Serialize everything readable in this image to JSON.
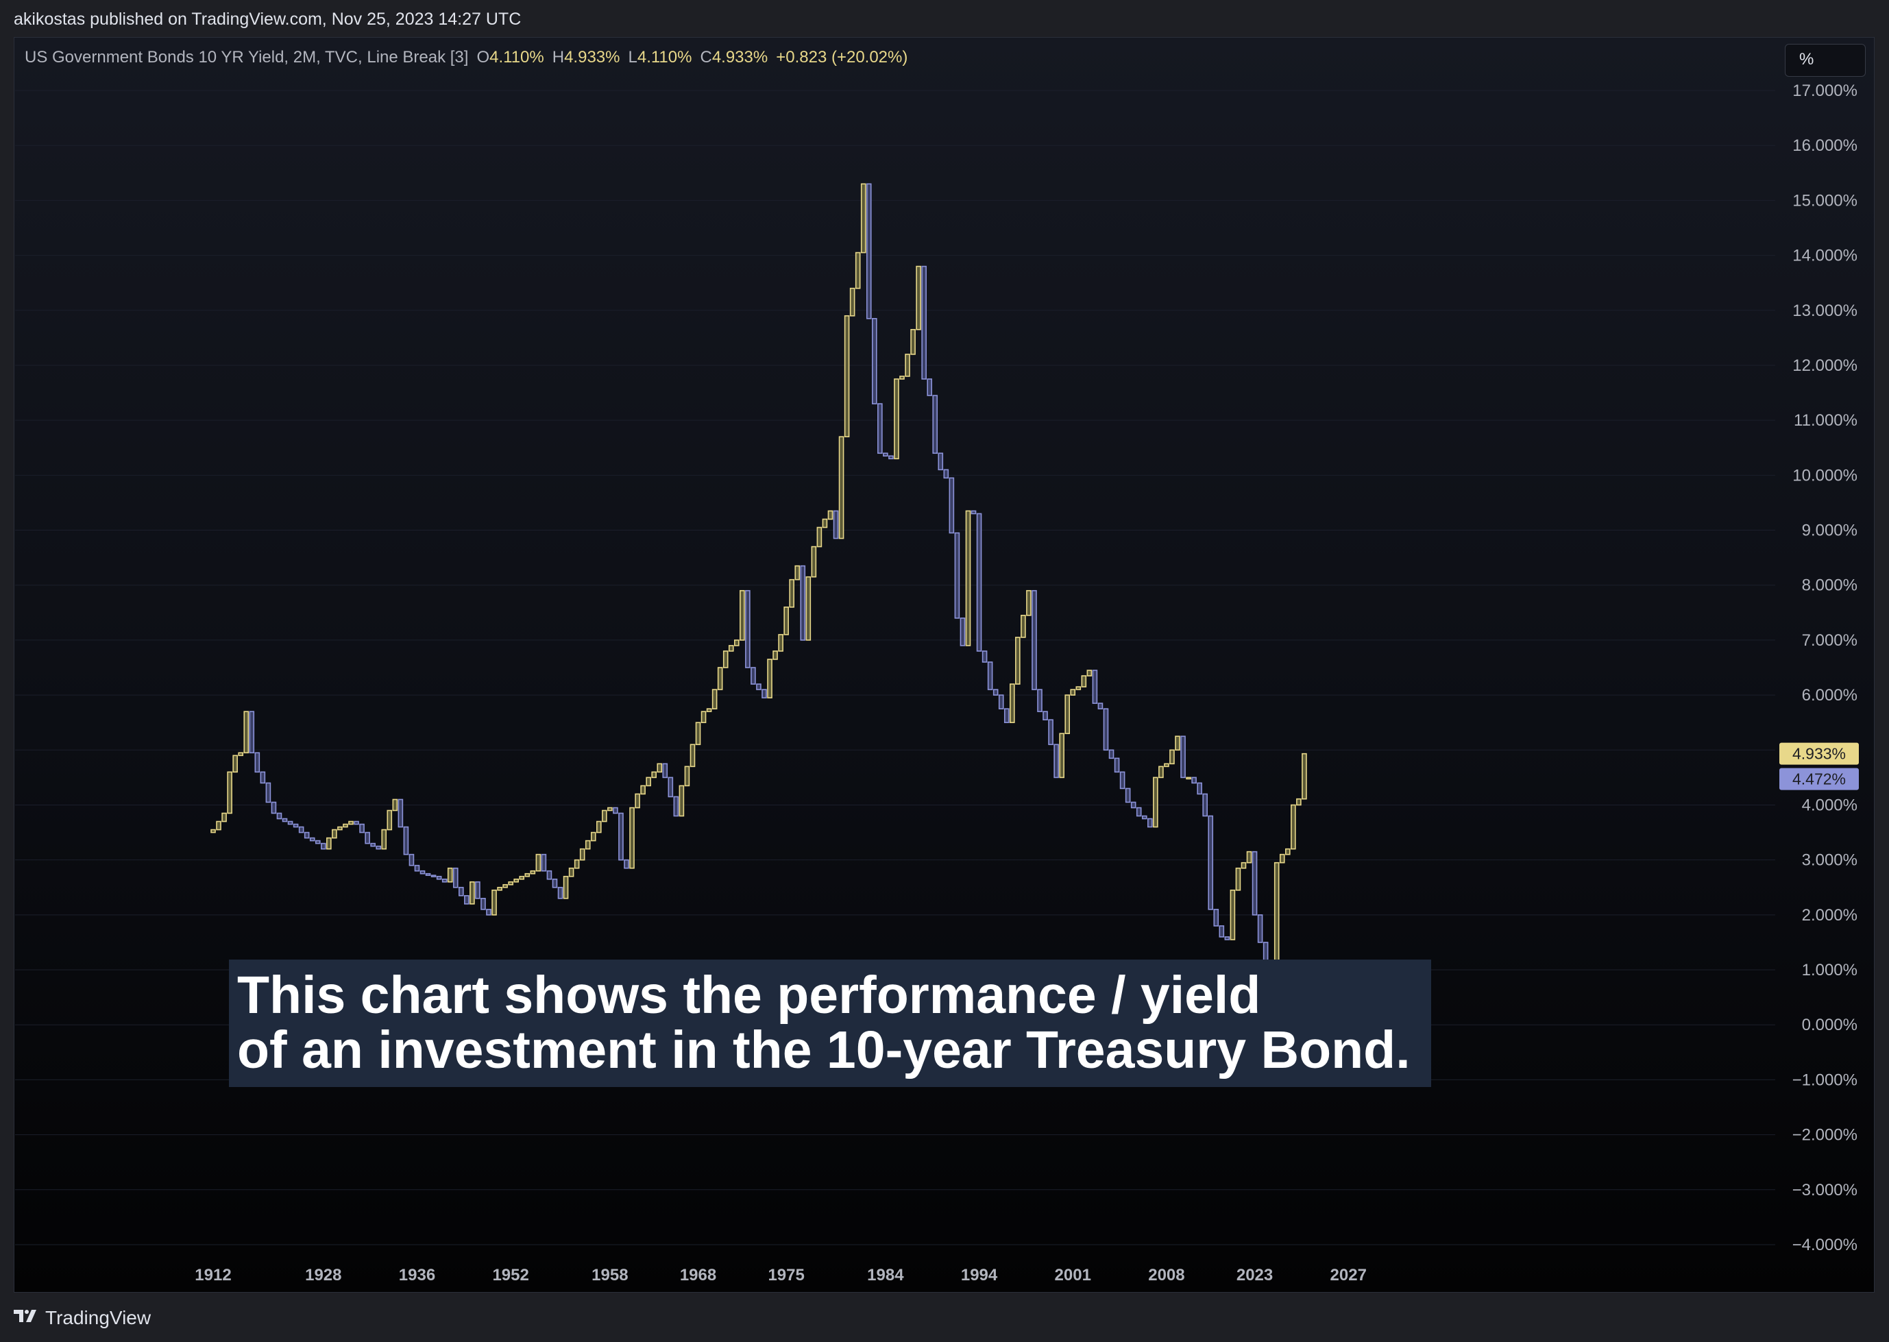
{
  "header": {
    "published_text": "akikostas published on TradingView.com, Nov 25, 2023 14:27 UTC"
  },
  "legend": {
    "title": "US Government Bonds 10 YR Yield, 2M, TVC, Line Break [3]",
    "open_label": "O",
    "open_value": "4.110%",
    "high_label": "H",
    "high_value": "4.933%",
    "low_label": "L",
    "low_value": "4.110%",
    "close_label": "C",
    "close_value": "4.933%",
    "change": "+0.823 (+20.02%)"
  },
  "axis_unit": "%",
  "caption": {
    "line1": "This chart shows the performance /  yield",
    "line2": "of an investment in the 10-year Treasury Bond."
  },
  "footer": {
    "brand": "TradingView"
  },
  "badges": [
    {
      "text": "4.933%",
      "value": 4.933,
      "bg": "#e8d88a",
      "fg": "#1e1f24"
    },
    {
      "text": "4.472%",
      "value": 4.472,
      "bg": "#8c93d9",
      "fg": "#1e1f24"
    }
  ],
  "colors": {
    "up": "#e8d88a",
    "down": "#8c93d9",
    "grid": "#1b1f2b"
  },
  "chart_data": {
    "type": "line_break",
    "title": "US Government Bonds 10 YR Yield, 2M, TVC, Line Break [3]",
    "ylabel": "%",
    "ylim": [
      -4,
      17
    ],
    "y_ticks": [
      17,
      16,
      15,
      14,
      13,
      12,
      11,
      10,
      9,
      8,
      7,
      6,
      5,
      4,
      3,
      2,
      1,
      0,
      -1,
      -2,
      -3,
      -4
    ],
    "y_tick_labels": [
      "17.000%",
      "16.000%",
      "15.000%",
      "14.000%",
      "13.000%",
      "12.000%",
      "11.000%",
      "10.000%",
      "9.000%",
      "8.000%",
      "7.000%",
      "6.000%",
      "",
      "4.000%",
      "3.000%",
      "2.000%",
      "1.000%",
      "0.000%",
      "−1.000%",
      "−2.000%",
      "−3.000%",
      "−4.000%"
    ],
    "x_tick_labels": [
      "1912",
      "1928",
      "1936",
      "1952",
      "1958",
      "1968",
      "1975",
      "1984",
      "1994",
      "2001",
      "2008",
      "2023",
      "2027"
    ],
    "x_tick_bricks": [
      0,
      20,
      37,
      54,
      72,
      88,
      104,
      122,
      139,
      156,
      173,
      189,
      206
    ],
    "start_value": 3.5,
    "bricks_close": [
      3.55,
      3.7,
      3.85,
      4.6,
      4.9,
      4.95,
      5.7,
      4.95,
      4.6,
      4.4,
      4.05,
      3.85,
      3.75,
      3.7,
      3.65,
      3.6,
      3.5,
      3.4,
      3.35,
      3.3,
      3.2,
      3.4,
      3.55,
      3.6,
      3.65,
      3.7,
      3.65,
      3.5,
      3.3,
      3.25,
      3.2,
      3.55,
      3.9,
      4.1,
      3.6,
      3.1,
      2.9,
      2.8,
      2.75,
      2.72,
      2.7,
      2.65,
      2.6,
      2.85,
      2.5,
      2.35,
      2.2,
      2.6,
      2.3,
      2.1,
      2.0,
      2.45,
      2.5,
      2.55,
      2.6,
      2.65,
      2.7,
      2.75,
      2.8,
      3.1,
      2.8,
      2.65,
      2.5,
      2.3,
      2.7,
      2.85,
      3.0,
      3.2,
      3.35,
      3.5,
      3.7,
      3.9,
      3.95,
      3.85,
      3.0,
      2.85,
      3.95,
      4.2,
      4.35,
      4.5,
      4.6,
      4.75,
      4.5,
      4.15,
      3.8,
      4.35,
      4.7,
      5.1,
      5.5,
      5.7,
      5.75,
      6.1,
      6.5,
      6.8,
      6.9,
      7.0,
      7.9,
      6.5,
      6.2,
      6.1,
      5.95,
      6.65,
      6.8,
      7.1,
      7.6,
      8.1,
      8.35,
      7.0,
      8.15,
      8.7,
      9.05,
      9.2,
      9.35,
      8.85,
      10.7,
      12.9,
      13.4,
      14.05,
      15.3,
      12.85,
      11.3,
      10.4,
      10.35,
      10.3,
      11.75,
      11.8,
      12.2,
      12.65,
      13.8,
      11.75,
      11.45,
      10.4,
      10.1,
      9.95,
      8.95,
      7.4,
      6.9,
      9.35,
      9.3,
      6.8,
      6.6,
      6.1,
      6.0,
      5.75,
      5.5,
      6.2,
      7.05,
      7.45,
      7.9,
      6.1,
      5.7,
      5.55,
      5.1,
      4.5,
      5.3,
      6.0,
      6.1,
      6.15,
      6.35,
      6.45,
      5.85,
      5.75,
      5.0,
      4.85,
      4.6,
      4.3,
      4.05,
      3.95,
      3.8,
      3.75,
      3.6,
      4.5,
      4.7,
      4.75,
      5.0,
      5.25,
      4.5,
      4.5,
      4.4,
      4.2,
      3.8,
      2.1,
      1.8,
      1.6,
      1.55,
      2.45,
      2.85,
      2.95,
      3.15,
      2.0,
      1.5,
      1.15,
      0.65,
      2.95,
      3.1,
      3.2,
      4.0,
      4.11,
      4.933
    ]
  }
}
